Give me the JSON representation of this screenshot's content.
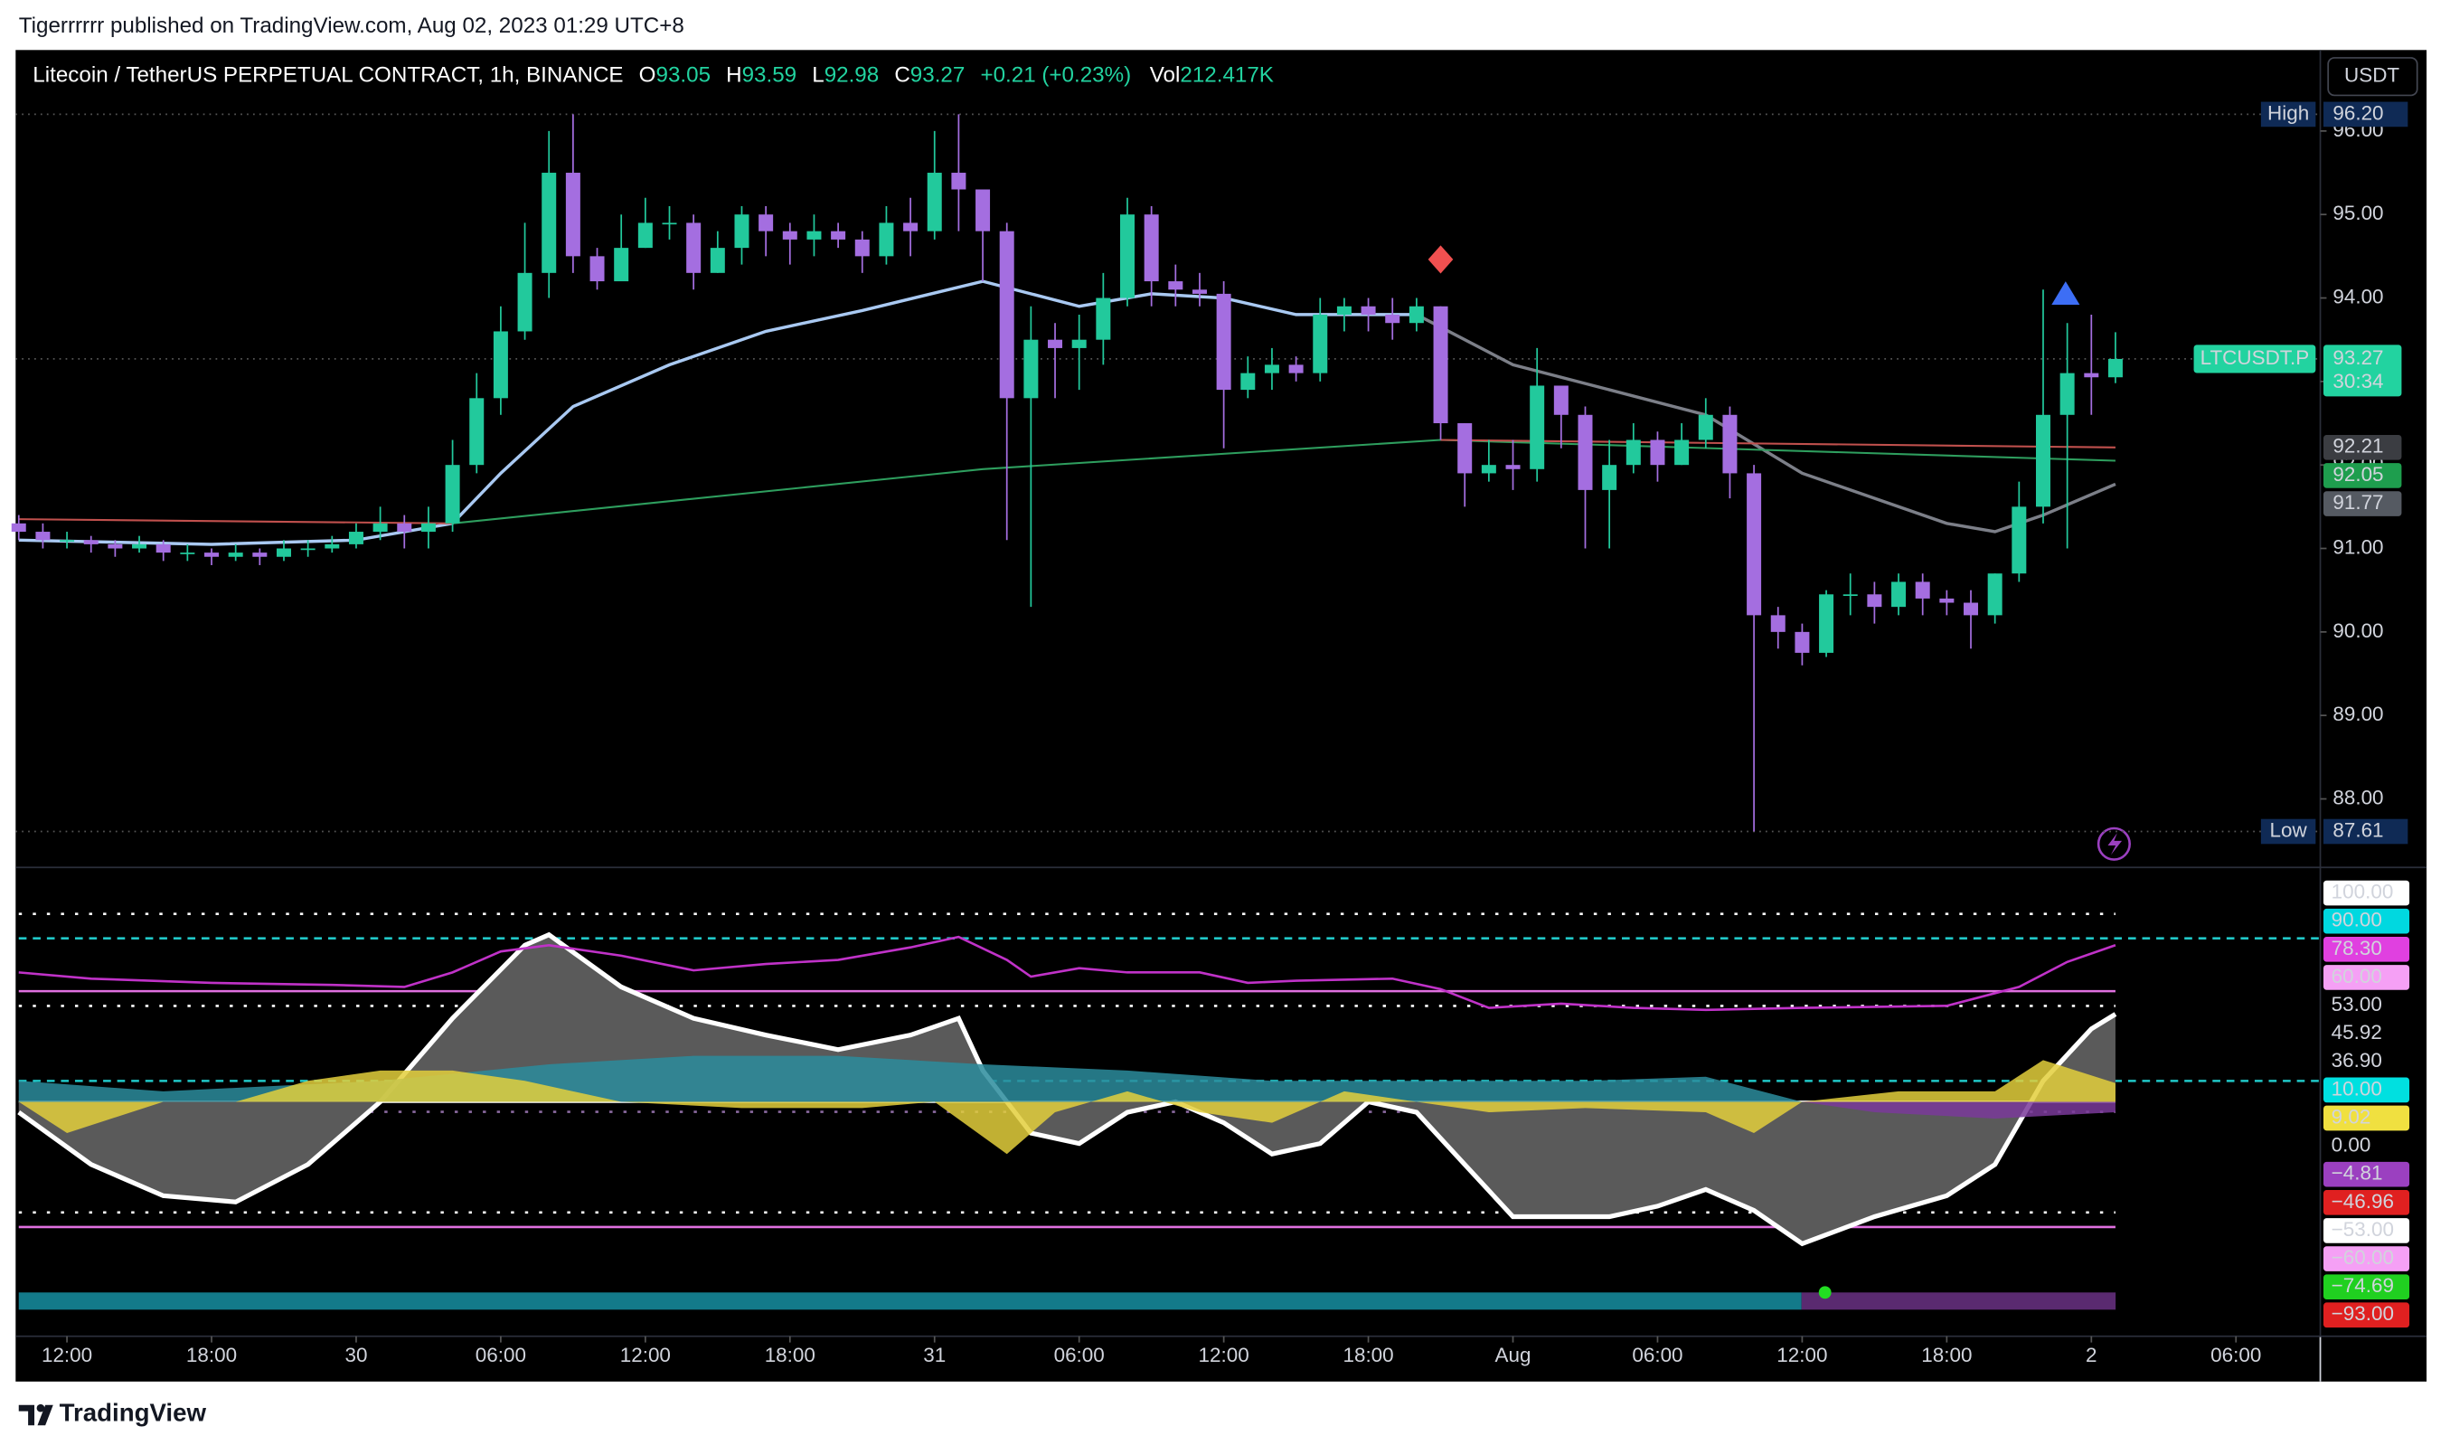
{
  "header": {
    "publisher": "Tigerrrrrr published on TradingView.com, Aug 02, 2023 01:29 UTC+8"
  },
  "footer": {
    "brand": "TradingView"
  },
  "currency_button": "USDT",
  "chart_data": [
    {
      "type": "candlestick",
      "title": "Litecoin / TetherUS PERPETUAL CONTRACT, 1h, BINANCE",
      "legend": [
        {
          "key": "O",
          "value": 93.05
        },
        {
          "key": "H",
          "value": 93.59
        },
        {
          "key": "L",
          "value": 92.98
        },
        {
          "key": "C",
          "value": 93.27
        }
      ],
      "change": "+0.21 (+0.23%)",
      "volume": {
        "key": "Vol",
        "value": "212.417K"
      },
      "up_color": "#22c99c",
      "down_color": "#a46ee0",
      "x": [
        0,
        1,
        2,
        3,
        4,
        5,
        6,
        7,
        8,
        9,
        10,
        11,
        12,
        13,
        14,
        15,
        16,
        17,
        18,
        19,
        20,
        21,
        22,
        23,
        24,
        25,
        26,
        27,
        28,
        29,
        30,
        31,
        32,
        33,
        34,
        35,
        36,
        37,
        38,
        39,
        40,
        41,
        42,
        43,
        44,
        45,
        46,
        47,
        48,
        49,
        50,
        51,
        52,
        53,
        54,
        55,
        56,
        57,
        58,
        59,
        60,
        61,
        62,
        63,
        64,
        65,
        66,
        67,
        68,
        69,
        70,
        71,
        72,
        73,
        74,
        75,
        76,
        77,
        78,
        79,
        80,
        81,
        82,
        83,
        84,
        85,
        86,
        87
      ],
      "open": [
        91.3,
        91.2,
        91.1,
        91.1,
        91.05,
        91.0,
        91.05,
        90.95,
        90.95,
        90.9,
        90.95,
        90.9,
        91.0,
        91.0,
        91.05,
        91.2,
        91.3,
        91.2,
        91.3,
        92.0,
        92.8,
        93.6,
        94.3,
        95.5,
        94.5,
        94.2,
        94.6,
        94.9,
        94.9,
        94.3,
        94.6,
        95.0,
        94.8,
        94.7,
        94.8,
        94.7,
        94.5,
        94.9,
        94.8,
        95.5,
        95.3,
        94.8,
        92.8,
        93.5,
        93.4,
        93.5,
        94.0,
        95.0,
        94.2,
        94.1,
        94.05,
        92.9,
        93.1,
        93.2,
        93.1,
        93.8,
        93.9,
        93.8,
        93.7,
        93.9,
        92.5,
        91.9,
        92.0,
        91.95,
        92.95,
        92.6,
        91.7,
        92.0,
        92.3,
        92.0,
        92.3,
        92.6,
        91.9,
        90.2,
        90.0,
        89.75,
        90.45,
        90.45,
        90.3,
        90.6,
        90.4,
        90.35,
        90.2,
        90.7,
        91.5,
        92.6,
        93.1,
        93.05
      ],
      "high": [
        91.4,
        91.3,
        91.2,
        91.15,
        91.1,
        91.15,
        91.1,
        91.05,
        91.0,
        91.05,
        91.0,
        91.1,
        91.1,
        91.15,
        91.3,
        91.5,
        91.4,
        91.5,
        92.3,
        93.1,
        93.9,
        94.9,
        96.0,
        96.2,
        94.6,
        95.0,
        95.2,
        95.1,
        95.0,
        94.8,
        95.1,
        95.1,
        94.9,
        95.0,
        94.9,
        94.8,
        95.1,
        95.2,
        96.0,
        96.2,
        95.3,
        94.9,
        93.9,
        93.7,
        93.8,
        94.3,
        95.2,
        95.1,
        94.4,
        94.3,
        94.2,
        93.3,
        93.4,
        93.3,
        94.0,
        94.0,
        94.0,
        94.0,
        94.0,
        93.9,
        92.5,
        92.3,
        92.3,
        93.4,
        92.9,
        92.7,
        92.3,
        92.5,
        92.4,
        92.5,
        92.8,
        92.7,
        92.0,
        90.3,
        90.1,
        90.5,
        90.7,
        90.6,
        90.7,
        90.7,
        90.5,
        90.5,
        90.7,
        91.8,
        94.1,
        93.7,
        93.8,
        93.59
      ],
      "low": [
        91.1,
        91.0,
        91.0,
        90.95,
        90.9,
        90.95,
        90.85,
        90.85,
        90.8,
        90.85,
        90.8,
        90.85,
        90.9,
        90.95,
        91.0,
        91.1,
        91.0,
        91.0,
        91.2,
        91.9,
        92.6,
        93.5,
        94.0,
        94.3,
        94.1,
        94.2,
        94.6,
        94.7,
        94.1,
        94.3,
        94.4,
        94.5,
        94.4,
        94.5,
        94.6,
        94.3,
        94.4,
        94.5,
        94.7,
        94.8,
        94.2,
        91.1,
        90.3,
        92.8,
        92.9,
        93.2,
        93.9,
        93.9,
        93.9,
        93.9,
        92.2,
        92.8,
        92.9,
        93.0,
        93.0,
        93.6,
        93.6,
        93.5,
        93.6,
        92.3,
        91.5,
        91.8,
        91.7,
        91.8,
        92.2,
        91.0,
        91.0,
        91.9,
        91.8,
        92.0,
        92.2,
        91.6,
        87.61,
        89.8,
        89.6,
        89.7,
        90.2,
        90.1,
        90.2,
        90.2,
        90.2,
        89.8,
        90.1,
        90.6,
        91.3,
        91.0,
        92.6,
        92.98
      ],
      "close": [
        91.2,
        91.1,
        91.1,
        91.05,
        91.0,
        91.05,
        90.95,
        90.95,
        90.9,
        90.95,
        90.9,
        91.0,
        91.0,
        91.05,
        91.2,
        91.3,
        91.2,
        91.3,
        92.0,
        92.8,
        93.6,
        94.3,
        95.5,
        94.5,
        94.2,
        94.6,
        94.9,
        94.9,
        94.3,
        94.6,
        95.0,
        94.8,
        94.7,
        94.8,
        94.7,
        94.5,
        94.9,
        94.8,
        95.5,
        95.3,
        94.8,
        92.8,
        93.5,
        93.4,
        93.5,
        94.0,
        95.0,
        94.2,
        94.1,
        94.05,
        92.9,
        93.1,
        93.2,
        93.1,
        93.8,
        93.9,
        93.8,
        93.7,
        93.9,
        92.5,
        91.9,
        92.0,
        91.95,
        92.95,
        92.6,
        91.7,
        92.0,
        92.3,
        92.0,
        92.3,
        92.6,
        91.9,
        90.2,
        90.0,
        89.75,
        90.45,
        90.45,
        90.3,
        90.6,
        90.4,
        90.35,
        90.2,
        90.7,
        91.5,
        92.6,
        93.1,
        93.05,
        93.27
      ],
      "xlim": [
        -0.13,
        95.5
      ],
      "ylim": [
        87.18,
        96.97
      ],
      "yticks": [
        {
          "value": 88,
          "label": "88.00"
        },
        {
          "value": 89,
          "label": "89.00"
        },
        {
          "value": 90,
          "label": "90.00"
        },
        {
          "value": 91,
          "label": "91.00"
        },
        {
          "value": 92,
          "label": "92.00"
        },
        {
          "value": 93,
          "label": "93.00"
        },
        {
          "value": 94,
          "label": "94.00"
        },
        {
          "value": 95,
          "label": "95.00"
        },
        {
          "value": 96,
          "label": "96.00"
        }
      ],
      "xticks": [
        {
          "value": 2,
          "label": "12:00"
        },
        {
          "value": 8,
          "label": "18:00"
        },
        {
          "value": 14,
          "label": "30"
        },
        {
          "value": 20,
          "label": "06:00"
        },
        {
          "value": 26,
          "label": "12:00"
        },
        {
          "value": 32,
          "label": "18:00"
        },
        {
          "value": 38,
          "label": "31"
        },
        {
          "value": 44,
          "label": "06:00"
        },
        {
          "value": 50,
          "label": "12:00"
        },
        {
          "value": 56,
          "label": "18:00"
        },
        {
          "value": 62,
          "label": "Aug"
        },
        {
          "value": 68,
          "label": "06:00"
        },
        {
          "value": 74,
          "label": "12:00"
        },
        {
          "value": 80,
          "label": "18:00"
        },
        {
          "value": 86,
          "label": "2"
        },
        {
          "value": 92,
          "label": "06:00"
        }
      ],
      "grid": false,
      "lines": [
        {
          "color": "#a9c9f2",
          "x": [
            0,
            8,
            14,
            18,
            20,
            23,
            27,
            31,
            35,
            40,
            44,
            47,
            50,
            53,
            58
          ],
          "values": [
            91.1,
            91.05,
            91.1,
            91.3,
            91.9,
            92.7,
            93.2,
            93.6,
            93.85,
            94.2,
            93.9,
            94.05,
            94.0,
            93.8,
            93.8
          ]
        },
        {
          "color": "#7c7f88",
          "x": [
            58,
            62,
            66,
            70,
            74,
            80,
            82,
            84,
            87
          ],
          "values": [
            93.8,
            93.2,
            92.9,
            92.6,
            91.9,
            91.3,
            91.2,
            91.4,
            91.77
          ]
        },
        {
          "color": "#c0504d",
          "x": [
            0,
            18
          ],
          "values": [
            91.35,
            91.3
          ]
        },
        {
          "color": "#2e9e5e",
          "x": [
            18,
            40,
            59,
            87
          ],
          "values": [
            91.3,
            91.95,
            92.3,
            92.05
          ]
        },
        {
          "color": "#c0504d",
          "x": [
            59,
            87
          ],
          "values": [
            92.3,
            92.21
          ]
        }
      ],
      "extremes": [
        {
          "name": "High",
          "value": 96.2,
          "label": "96.20"
        },
        {
          "name": "Low",
          "value": 87.61,
          "label": "87.61"
        }
      ],
      "last_price": {
        "symbol": "LTCUSDT.P",
        "value": 93.27,
        "label": "93.27",
        "countdown": "30:34",
        "color": "#22d3a0"
      },
      "price_tags": [
        {
          "value": 92.21,
          "label": "92.21",
          "bg": "#3b3d42"
        },
        {
          "value": 92.05,
          "label": "92.05",
          "bg": "#1e9e4e"
        },
        {
          "value": 91.77,
          "label": "91.77",
          "bg": "#555a62"
        }
      ]
    },
    {
      "type": "area",
      "xlim": [
        -0.13,
        95.5
      ],
      "ylim": [
        -112.3,
        112.3
      ],
      "areas": [
        {
          "color": "#5a5a5a",
          "edge": "#ffffff",
          "x": [
            0,
            3,
            6,
            9,
            12,
            15,
            18,
            21,
            22,
            25,
            28,
            31,
            34,
            37,
            39,
            40,
            42,
            44,
            46,
            48,
            50,
            52,
            54,
            56,
            58,
            60,
            62,
            64,
            66,
            68,
            70,
            72,
            74,
            77,
            80,
            82,
            84,
            86,
            87
          ],
          "values": [
            -5,
            -30,
            -45,
            -48,
            -30,
            0,
            40,
            75,
            80,
            55,
            40,
            32,
            25,
            32,
            40,
            15,
            -15,
            -20,
            -5,
            0,
            -10,
            -25,
            -20,
            0,
            -5,
            -30,
            -55,
            -55,
            -55,
            -50,
            -42,
            -52,
            -68,
            -55,
            -45,
            -30,
            10,
            35,
            42
          ]
        },
        {
          "color": "#2b8c9c",
          "x": [
            0,
            6,
            15,
            22,
            28,
            34,
            40,
            46,
            52,
            58,
            65,
            70,
            74
          ],
          "values": [
            10,
            5,
            10,
            18,
            22,
            22,
            18,
            15,
            10,
            10,
            10,
            12,
            0
          ]
        },
        {
          "color": "#e3cf3c",
          "x": [
            0,
            2,
            6,
            9,
            12,
            15,
            18,
            21,
            25,
            30,
            35,
            38,
            41,
            43,
            46,
            49,
            52,
            55,
            58,
            61,
            65,
            70,
            72,
            74,
            78,
            82,
            84,
            87
          ],
          "values": [
            0,
            -15,
            0,
            0,
            10,
            15,
            15,
            10,
            0,
            -3,
            -3,
            0,
            -25,
            -5,
            5,
            -5,
            -10,
            5,
            0,
            -5,
            -3,
            -5,
            -15,
            0,
            5,
            5,
            20,
            9
          ]
        },
        {
          "color": "#7a3a9a",
          "x": [
            74,
            77,
            82,
            87
          ],
          "values": [
            0,
            -5,
            -8,
            -5
          ]
        }
      ],
      "lines": [
        {
          "color": "#c032c8",
          "x": [
            0,
            3,
            8,
            13,
            16,
            18,
            20,
            22,
            25,
            28,
            31,
            34,
            37,
            39,
            41,
            42,
            44,
            46,
            49,
            51,
            53,
            57,
            59,
            61,
            64,
            67,
            70,
            74,
            80,
            83,
            85,
            87
          ],
          "values": [
            62,
            59,
            57,
            56,
            55,
            62,
            72,
            75,
            70,
            63,
            66,
            68,
            74,
            79,
            68,
            60,
            64,
            62,
            62,
            57,
            58,
            59,
            54,
            45,
            47,
            45,
            44,
            45,
            46,
            55,
            67,
            75
          ]
        }
      ],
      "levels": [
        {
          "value": 100,
          "label": "100.00",
          "bg": "#ffffff",
          "fg": "#000000"
        },
        {
          "value": 90,
          "label": "90.00",
          "bg": "#00d8e0",
          "fg": "#000000",
          "line": "dotted",
          "line_color": "#ffffff"
        },
        {
          "value": 78.3,
          "label": "78.30",
          "bg": "#e040e0",
          "fg": "#ffffff",
          "line": "dashed",
          "line_color": "#20c8c8"
        },
        {
          "value": 60,
          "label": "60.00",
          "bg": "#f5a0f5",
          "fg": "#000000"
        },
        {
          "value": 53,
          "label": "53.00",
          "bg": "#000000",
          "fg": "#ffffff",
          "line": "solid",
          "line_color": "#e070e0"
        },
        {
          "value": 45.92,
          "label": "45.92",
          "bg": "#000000",
          "fg": "#ffffff",
          "line": "dotted",
          "line_color": "#ffffff"
        },
        {
          "value": 36.9,
          "label": "36.90",
          "bg": "#000000",
          "fg": "#ffffff"
        },
        {
          "value": 10,
          "label": "10.00",
          "bg": "#00e0e0",
          "fg": "#000000",
          "line": "dashed",
          "line_color": "#20c8c8"
        },
        {
          "value": 9.02,
          "label": "9.02",
          "bg": "#f0e040",
          "fg": "#000000"
        },
        {
          "value": 0,
          "label": "0.00",
          "bg": "#000000",
          "fg": "#ffffff",
          "line": "solid",
          "line_color": "#ffffff"
        },
        {
          "value": -4.81,
          "label": "−4.81",
          "bg": "#9b40c0",
          "fg": "#ffffff",
          "line": "dotted",
          "line_color": "#8a6aa0"
        },
        {
          "value": -46.96,
          "label": "−46.96",
          "bg": "#e02020",
          "fg": "#ffffff"
        },
        {
          "value": -53,
          "label": "−53.00",
          "bg": "#ffffff",
          "fg": "#000000",
          "line": "dotted",
          "line_color": "#ffffff"
        },
        {
          "value": -60,
          "label": "−60.00",
          "bg": "#f5a0f5",
          "fg": "#000000",
          "line": "solid",
          "line_color": "#e070e0"
        },
        {
          "value": -74.69,
          "label": "−74.69",
          "bg": "#20d020",
          "fg": "#000000"
        },
        {
          "value": -93,
          "label": "−93.00",
          "bg": "#e02020",
          "fg": "#ffffff"
        }
      ]
    }
  ]
}
